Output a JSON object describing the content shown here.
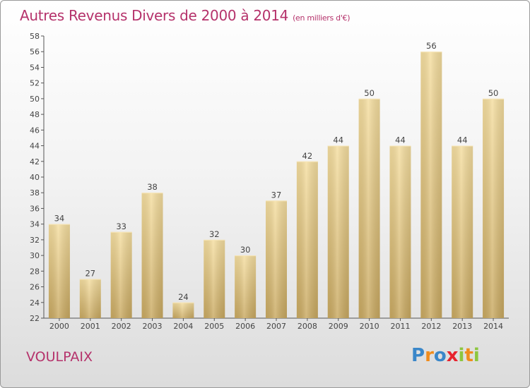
{
  "chart_data": {
    "type": "bar",
    "title": "Autres Revenus Divers de 2000 à 2014",
    "unit": "(en milliers d'€)",
    "categories": [
      "2000",
      "2001",
      "2002",
      "2003",
      "2004",
      "2005",
      "2006",
      "2007",
      "2008",
      "2009",
      "2010",
      "2011",
      "2012",
      "2013",
      "2014"
    ],
    "values": [
      34,
      27,
      33,
      38,
      24,
      32,
      30,
      37,
      42,
      44,
      50,
      44,
      56,
      44,
      50
    ],
    "ylim": [
      22,
      58
    ],
    "yticks": [
      22,
      24,
      26,
      28,
      30,
      32,
      34,
      36,
      38,
      40,
      42,
      44,
      46,
      48,
      50,
      52,
      54,
      56,
      58
    ],
    "grid": false,
    "bar_color": "#e6c87e"
  },
  "footer": {
    "place": "VOULPAIX",
    "logo": {
      "p": "P",
      "r": "r",
      "o": "o",
      "x": "x",
      "i": "i",
      "t": "t",
      "i2": "i"
    }
  }
}
